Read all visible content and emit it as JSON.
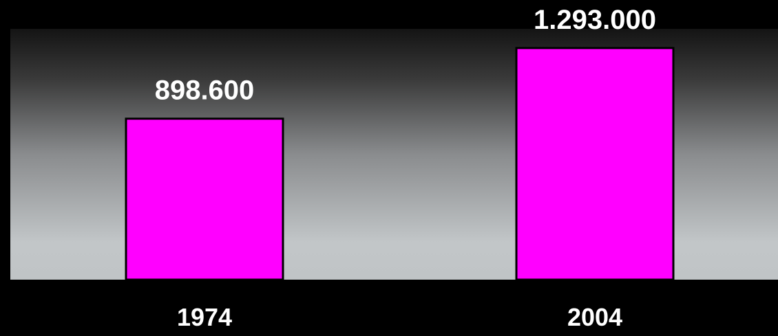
{
  "chart_data": {
    "type": "bar",
    "categories": [
      "1974",
      "2004"
    ],
    "values": [
      898600,
      1293000
    ],
    "value_labels": [
      "898.600",
      "1.293.000"
    ],
    "title": "",
    "xlabel": "",
    "ylabel": "",
    "ylim": [
      0,
      1400000
    ],
    "grid": false,
    "legend": "none",
    "colors": {
      "bar_fill": "#ff00ff",
      "bar_stroke": "#000000",
      "page_background": "#000000",
      "plot_gradient_top": "#141414",
      "plot_gradient_bottom": "#c2c6c8",
      "text": "#ffffff"
    }
  }
}
